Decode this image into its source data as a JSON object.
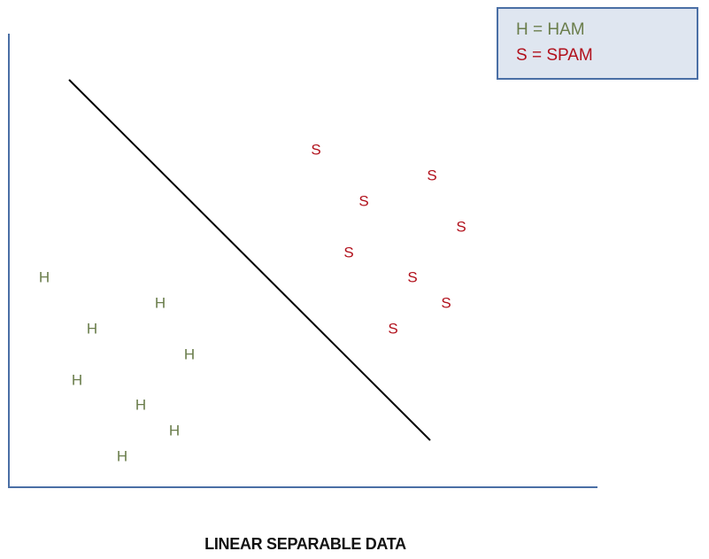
{
  "chart_data": {
    "type": "scatter",
    "title": "LINEAR SEPARABLE DATA",
    "legend": {
      "position": "top-right",
      "entries": [
        "H = HAM",
        "S = SPAM"
      ]
    },
    "grid": false,
    "series": [
      {
        "name": "HAM",
        "marker": "H",
        "color": "#6a7d4b",
        "points": [
          [
            50,
            313
          ],
          [
            181,
            342
          ],
          [
            104,
            371
          ],
          [
            214,
            400
          ],
          [
            87,
            429
          ],
          [
            159,
            457
          ],
          [
            197,
            486
          ],
          [
            138,
            515
          ]
        ]
      },
      {
        "name": "SPAM",
        "marker": "S",
        "color": "#b1101b",
        "points": [
          [
            357,
            169
          ],
          [
            488,
            198
          ],
          [
            411,
            227
          ],
          [
            521,
            256
          ],
          [
            394,
            285
          ],
          [
            466,
            313
          ],
          [
            504,
            342
          ],
          [
            444,
            371
          ]
        ]
      }
    ],
    "separator": {
      "from": [
        78,
        90
      ],
      "to": [
        486,
        497
      ]
    }
  },
  "colors": {
    "axis": "#4a6fa5",
    "separator": "#000000",
    "legend_bg": "#dfe6f0"
  }
}
